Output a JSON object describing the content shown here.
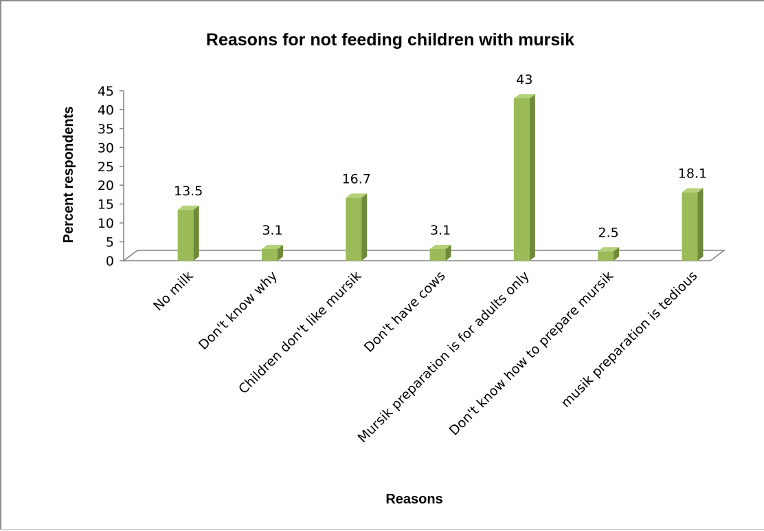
{
  "chart_data": {
    "type": "bar",
    "title": "Reasons for not feeding children with mursik",
    "xlabel": "Reasons",
    "ylabel": "Percent respondents",
    "categories": [
      "No milk",
      "Don't know why",
      "Children don't like mursik",
      "Don't have cows",
      "Mursik preparation is for adults only",
      "Don't know how to prepare mursik",
      "musik preparation is tedious"
    ],
    "values": [
      13.5,
      3.1,
      16.7,
      3.1,
      43,
      2.5,
      18.1
    ],
    "data_labels": [
      "13.5",
      "3.1",
      "16.7",
      "3.1",
      "43",
      "2.5",
      "18.1"
    ],
    "ylim": [
      0,
      45
    ],
    "yticks": [
      0,
      5,
      10,
      15,
      20,
      25,
      30,
      35,
      40,
      45
    ],
    "grid": false,
    "legend": "none",
    "style": "3d-column",
    "colors": {
      "bar_front": "#9bbb59",
      "bar_side": "#6f8a3a",
      "bar_top": "#b5d17a",
      "floor_line": "#808080"
    }
  }
}
